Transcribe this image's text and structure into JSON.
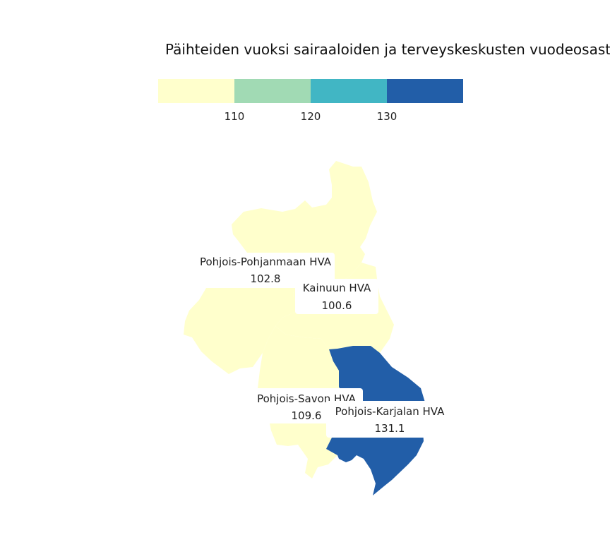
{
  "title": "Päihteiden vuoksi sairaaloiden ja terveyskeskusten vuodeosastoilla hoidetut potilaat",
  "legend": {
    "breaks": [
      "110",
      "120",
      "130"
    ],
    "colors": [
      "#ffffcc",
      "#a1dab4",
      "#41b6c4",
      "#225ea8"
    ]
  },
  "chart_data": {
    "type": "choropleth",
    "regions": [
      {
        "name": "Pohjois-Pohjanmaan HVA",
        "value": 102.8,
        "value_label": "102.8",
        "color": "#ffffcc"
      },
      {
        "name": "Kainuun HVA",
        "value": 100.6,
        "value_label": "100.6",
        "color": "#ffffcc"
      },
      {
        "name": "Pohjois-Savon HVA",
        "value": 109.6,
        "value_label": "109.6",
        "color": "#ffffcc"
      },
      {
        "name": "Pohjois-Karjalan HVA",
        "value": 131.1,
        "value_label": "131.1",
        "color": "#225ea8"
      }
    ]
  }
}
